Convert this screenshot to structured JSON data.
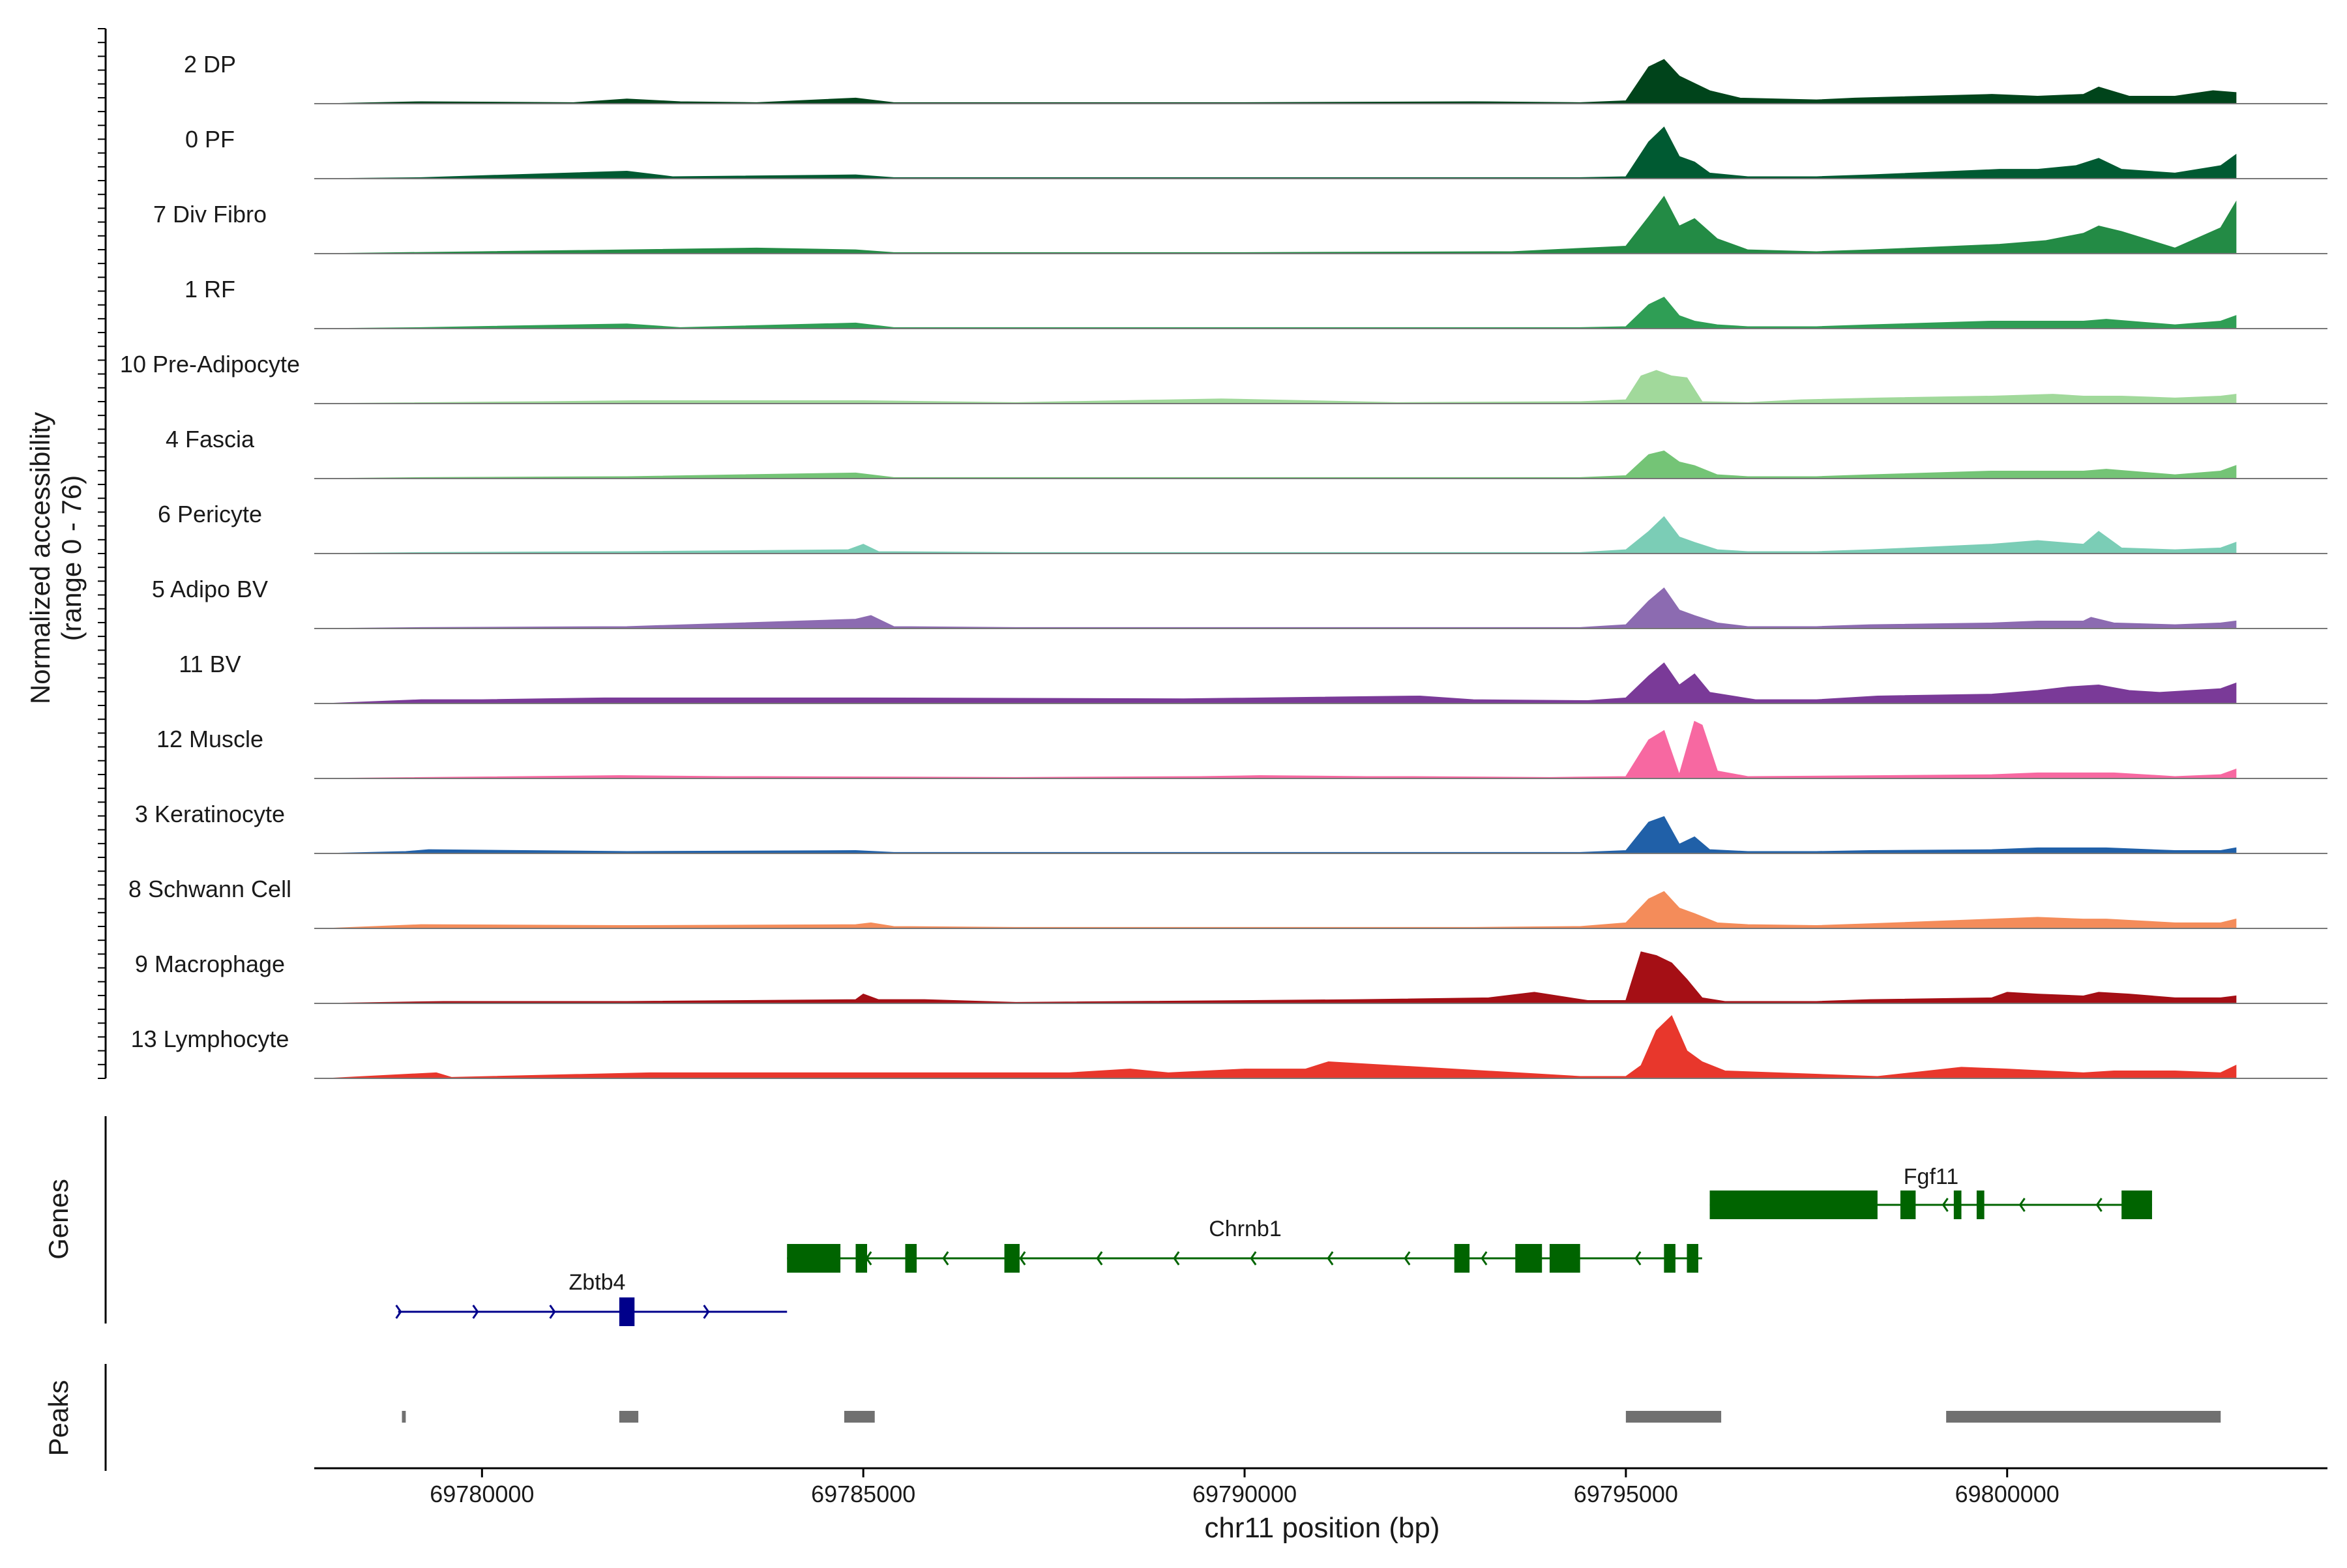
{
  "chart_data": {
    "type": "area",
    "title": "",
    "xlabel": "chr11 position (bp)",
    "ylabel_line1": "Normalized accessibility",
    "ylabel_line2": "(range 0 - 76)",
    "y_range": [
      0,
      76
    ],
    "x_range": [
      69777800,
      69804200
    ],
    "x_ticks": [
      69780000,
      69785000,
      69790000,
      69795000,
      69800000
    ],
    "x_tick_labels": [
      "69780000",
      "69785000",
      "69790000",
      "69795000",
      "69800000"
    ],
    "tracks_ylabel": "Genes",
    "peaks_ylabel": "Peaks",
    "grid": false,
    "legend": "none",
    "series": [
      {
        "name": "2 DP",
        "color": "#00441b",
        "x": [
          69778000,
          69779200,
          69781200,
          69781900,
          69782600,
          69783600,
          69784900,
          69785400,
          69787000,
          69790000,
          69793000,
          69794400,
          69795000,
          69795300,
          69795500,
          69795700,
          69796100,
          69796500,
          69797500,
          69798000,
          69799800,
          69800400,
          69801000,
          69801200,
          69801600,
          69802200,
          69802700,
          69803000
        ],
        "values": [
          0,
          2,
          1,
          5,
          2,
          1,
          6,
          1,
          1,
          1,
          2,
          1,
          3,
          40,
          48,
          30,
          14,
          6,
          4,
          6,
          10,
          8,
          10,
          18,
          8,
          8,
          14,
          12
        ]
      },
      {
        "name": "0 PF",
        "color": "#005a32",
        "x": [
          69778000,
          69779200,
          69781900,
          69782500,
          69784900,
          69785400,
          69787000,
          69790000,
          69793000,
          69794400,
          69795000,
          69795300,
          69795500,
          69795700,
          69795900,
          69796100,
          69796600,
          69797500,
          69798200,
          69799900,
          69800400,
          69800900,
          69801200,
          69801500,
          69802200,
          69802800,
          69803000
        ],
        "values": [
          0,
          1,
          8,
          2,
          4,
          1,
          1,
          1,
          1,
          1,
          2,
          40,
          56,
          24,
          18,
          6,
          2,
          2,
          4,
          10,
          10,
          14,
          22,
          10,
          6,
          14,
          26
        ]
      },
      {
        "name": "7 Div Fibro",
        "color": "#238b45",
        "x": [
          69778000,
          69780000,
          69781900,
          69783600,
          69784900,
          69785400,
          69787000,
          69790000,
          69793500,
          69795000,
          69795300,
          69795500,
          69795700,
          69795900,
          69796200,
          69796600,
          69797500,
          69798200,
          69799900,
          69800500,
          69801000,
          69801200,
          69801500,
          69802200,
          69802800,
          69803000
        ],
        "values": [
          0,
          2,
          4,
          6,
          4,
          1,
          1,
          1,
          2,
          8,
          40,
          62,
          30,
          38,
          16,
          4,
          2,
          4,
          10,
          14,
          22,
          30,
          24,
          6,
          28,
          56
        ]
      },
      {
        "name": "1 RF",
        "color": "#2f9e55",
        "x": [
          69778000,
          69779200,
          69781900,
          69782600,
          69784900,
          69785400,
          69787000,
          69790000,
          69793000,
          69794400,
          69795000,
          69795300,
          69795500,
          69795700,
          69795900,
          69796200,
          69796600,
          69797500,
          69798200,
          69799800,
          69800400,
          69801000,
          69801300,
          69802200,
          69802800,
          69803000
        ],
        "values": [
          0,
          1,
          5,
          1,
          6,
          1,
          1,
          1,
          1,
          1,
          2,
          26,
          34,
          14,
          8,
          4,
          2,
          2,
          4,
          8,
          8,
          8,
          10,
          4,
          8,
          14
        ]
      },
      {
        "name": "10 Pre-Adipocyte",
        "color": "#a1d99b",
        "x": [
          69778000,
          69780800,
          69782000,
          69783800,
          69785000,
          69787000,
          69789700,
          69792000,
          69794400,
          69795000,
          69795200,
          69795400,
          69795600,
          69795800,
          69796000,
          69796600,
          69797300,
          69798300,
          69799800,
          69800600,
          69801000,
          69801500,
          69802200,
          69802800,
          69803000
        ],
        "values": [
          0,
          2,
          3,
          3,
          3,
          1,
          5,
          1,
          2,
          4,
          30,
          36,
          30,
          28,
          2,
          1,
          4,
          6,
          8,
          10,
          8,
          8,
          6,
          8,
          10
        ]
      },
      {
        "name": "4 Fascia",
        "color": "#74c476",
        "x": [
          69778000,
          69779200,
          69781900,
          69784900,
          69785400,
          69787000,
          69790000,
          69793000,
          69794400,
          69795000,
          69795300,
          69795500,
          69795700,
          69795900,
          69796200,
          69796600,
          69797500,
          69798200,
          69799800,
          69800400,
          69801000,
          69801300,
          69802200,
          69802800,
          69803000
        ],
        "values": [
          0,
          1,
          2,
          6,
          1,
          1,
          1,
          1,
          1,
          3,
          26,
          30,
          18,
          14,
          4,
          2,
          2,
          4,
          8,
          8,
          8,
          10,
          4,
          8,
          14
        ]
      },
      {
        "name": "6 Pericyte",
        "color": "#7bcdb6",
        "x": [
          69778000,
          69779200,
          69781900,
          69784800,
          69785000,
          69785200,
          69787000,
          69790000,
          69793000,
          69794400,
          69795000,
          69795300,
          69795500,
          69795700,
          69795900,
          69796200,
          69796600,
          69797500,
          69798200,
          69799800,
          69800400,
          69801000,
          69801200,
          69801500,
          69802200,
          69802800,
          69803000
        ],
        "values": [
          0,
          1,
          2,
          4,
          10,
          2,
          1,
          1,
          1,
          1,
          4,
          24,
          40,
          18,
          12,
          4,
          2,
          2,
          4,
          10,
          14,
          10,
          24,
          6,
          4,
          6,
          12
        ]
      },
      {
        "name": "5 Adipo BV",
        "color": "#8c6bb1",
        "x": [
          69778000,
          69779200,
          69781900,
          69784900,
          69785100,
          69785400,
          69787000,
          69790000,
          69793000,
          69794400,
          69795000,
          69795300,
          69795500,
          69795700,
          69795900,
          69796200,
          69796600,
          69797500,
          69798200,
          69799800,
          69800400,
          69801000,
          69801100,
          69801400,
          69802200,
          69802800,
          69803000
        ],
        "values": [
          0,
          1,
          2,
          10,
          14,
          2,
          1,
          1,
          1,
          1,
          4,
          30,
          44,
          20,
          14,
          6,
          2,
          2,
          4,
          6,
          8,
          8,
          12,
          6,
          4,
          6,
          8
        ]
      },
      {
        "name": "11 BV",
        "color": "#7a3a98",
        "x": [
          69778000,
          69779200,
          69780000,
          69781600,
          69783700,
          69785000,
          69789200,
          69792300,
          69793000,
          69794500,
          69795000,
          69795300,
          69795500,
          69795700,
          69795900,
          69796100,
          69796700,
          69797500,
          69798300,
          69799800,
          69800400,
          69800800,
          69801200,
          69801600,
          69802000,
          69802800,
          69803000
        ],
        "values": [
          0,
          4,
          4,
          6,
          6,
          6,
          5,
          8,
          4,
          3,
          6,
          30,
          44,
          20,
          32,
          12,
          4,
          4,
          8,
          10,
          14,
          18,
          20,
          14,
          12,
          16,
          22
        ]
      },
      {
        "name": "12 Muscle",
        "color": "#f768a1",
        "x": [
          69778000,
          69781800,
          69783200,
          69783600,
          69787000,
          69789400,
          69790200,
          69791600,
          69792200,
          69794000,
          69795000,
          69795300,
          69795500,
          69795700,
          69795900,
          69796000,
          69796200,
          69796600,
          69798400,
          69799800,
          69800400,
          69801000,
          69801400,
          69802200,
          69802800,
          69803000
        ],
        "values": [
          0,
          3,
          2,
          2,
          1,
          2,
          3,
          2,
          2,
          1,
          2,
          42,
          52,
          4,
          62,
          58,
          8,
          2,
          3,
          4,
          6,
          6,
          6,
          2,
          4,
          10
        ]
      },
      {
        "name": "3 Keratinocyte",
        "color": "#2060a8",
        "x": [
          69778000,
          69779000,
          69779300,
          69781900,
          69784900,
          69785400,
          69787000,
          69790000,
          69793000,
          69794400,
          69795000,
          69795300,
          69795500,
          69795700,
          69795900,
          69796100,
          69796600,
          69797500,
          69798200,
          69799800,
          69800400,
          69801000,
          69801300,
          69802200,
          69802800,
          69803000
        ],
        "values": [
          0,
          2,
          4,
          2,
          3,
          1,
          1,
          1,
          1,
          1,
          3,
          34,
          40,
          10,
          18,
          4,
          2,
          2,
          3,
          4,
          6,
          6,
          6,
          3,
          3,
          6
        ]
      },
      {
        "name": "8 Schwann Cell",
        "color": "#f48c5a",
        "x": [
          69778000,
          69779200,
          69781900,
          69784900,
          69785100,
          69785400,
          69787000,
          69790000,
          69793000,
          69794400,
          69795000,
          69795300,
          69795500,
          69795700,
          69795900,
          69796200,
          69796600,
          69797500,
          69798200,
          69799800,
          69800400,
          69801000,
          69801300,
          69802200,
          69802800,
          69803000
        ],
        "values": [
          0,
          4,
          3,
          4,
          6,
          2,
          1,
          1,
          1,
          2,
          6,
          32,
          40,
          22,
          16,
          6,
          4,
          3,
          5,
          10,
          12,
          10,
          10,
          6,
          6,
          10
        ]
      },
      {
        "name": "9 Macrophage",
        "color": "#a50f15",
        "x": [
          69778000,
          69779500,
          69781900,
          69784900,
          69785000,
          69785200,
          69785800,
          69787000,
          69791500,
          69793200,
          69793800,
          69794500,
          69795000,
          69795200,
          69795400,
          69795600,
          69795800,
          69796000,
          69796300,
          69797500,
          69798200,
          69799800,
          69800000,
          69800400,
          69801000,
          69801200,
          69801600,
          69802200,
          69802800,
          69803000
        ],
        "values": [
          0,
          2,
          2,
          4,
          10,
          4,
          4,
          1,
          4,
          6,
          12,
          3,
          3,
          56,
          52,
          44,
          26,
          6,
          2,
          2,
          4,
          6,
          12,
          10,
          8,
          12,
          10,
          6,
          6,
          8
        ]
      },
      {
        "name": "13 Lymphocyte",
        "color": "#e8372c",
        "x": [
          69778000,
          69779400,
          69779600,
          69782200,
          69783000,
          69787700,
          69788500,
          69789000,
          69790000,
          69790800,
          69791100,
          69794400,
          69795000,
          69795200,
          69795400,
          69795600,
          69795800,
          69796000,
          69796300,
          69798300,
          69799400,
          69800000,
          69801000,
          69801400,
          69802200,
          69802800,
          69803000
        ],
        "values": [
          0,
          6,
          1,
          6,
          6,
          6,
          10,
          6,
          10,
          10,
          18,
          2,
          2,
          14,
          52,
          68,
          30,
          18,
          8,
          2,
          12,
          10,
          6,
          8,
          8,
          6,
          14
        ]
      }
    ],
    "genes": [
      {
        "name": "Zbtb4",
        "color": "#00008b",
        "strand": "+",
        "start": 69778900,
        "end": 69784000,
        "exons": [
          [
            69781800,
            69782000
          ]
        ]
      },
      {
        "name": "Chrnb1",
        "color": "#006400",
        "strand": "-",
        "start": 69784000,
        "end": 69796000,
        "exons": [
          [
            69784000,
            69784700
          ],
          [
            69784900,
            69785050
          ],
          [
            69785550,
            69785700
          ],
          [
            69786850,
            69787050
          ],
          [
            69792750,
            69792950
          ],
          [
            69793550,
            69793900
          ],
          [
            69794000,
            69794400
          ],
          [
            69795500,
            69795650
          ],
          [
            69795800,
            69795950
          ]
        ]
      },
      {
        "name": "Fgf11",
        "color": "#006400",
        "strand": "-",
        "start": 69796100,
        "end": 69801900,
        "exons": [
          [
            69796100,
            69798300
          ],
          [
            69798600,
            69798800
          ],
          [
            69799300,
            69799400
          ],
          [
            69799600,
            69799700
          ],
          [
            69801500,
            69801900
          ]
        ]
      }
    ],
    "peaks": [
      [
        69778950,
        69779000
      ],
      [
        69781800,
        69782050
      ],
      [
        69784750,
        69785150
      ],
      [
        69795000,
        69796250
      ],
      [
        69799200,
        69802800
      ]
    ]
  }
}
